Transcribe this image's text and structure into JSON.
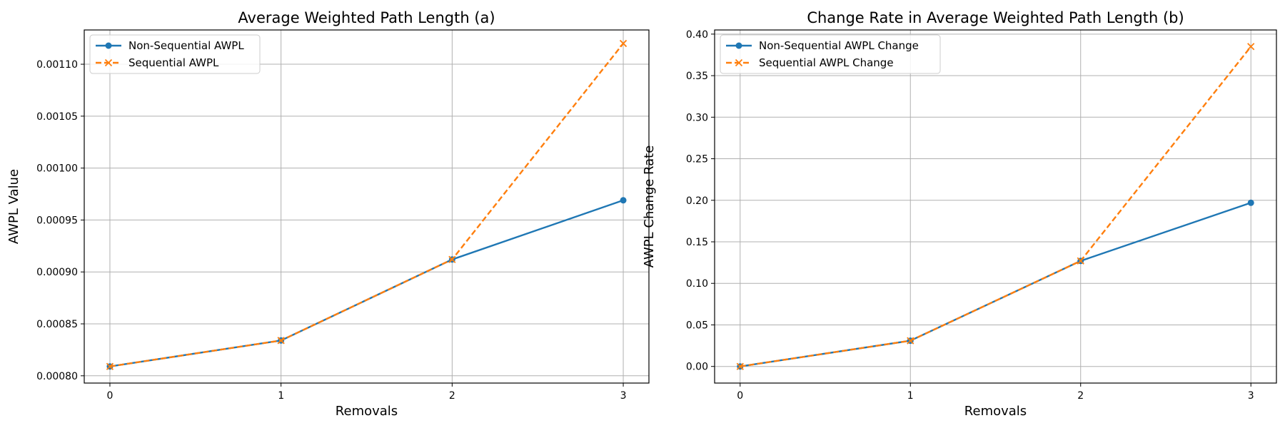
{
  "chart_data": [
    {
      "type": "line",
      "title": "Average Weighted Path Length (a)",
      "xlabel": "Removals",
      "ylabel": "AWPL Value",
      "x": [
        0,
        1,
        2,
        3
      ],
      "xticks": [
        "0",
        "1",
        "2",
        "3"
      ],
      "xlim": [
        -0.15,
        3.15
      ],
      "ylim": [
        0.000793,
        0.001133
      ],
      "yticks": [
        "0.00080",
        "0.00085",
        "0.00090",
        "0.00095",
        "0.00100",
        "0.00105",
        "0.00110"
      ],
      "grid": true,
      "legend": "upper-left",
      "series": [
        {
          "name": "Non-Sequential AWPL",
          "values": [
            0.000809,
            0.000834,
            0.000912,
            0.000969
          ],
          "color": "#1f77b4",
          "style": "solid",
          "marker": "circle"
        },
        {
          "name": "Sequential AWPL",
          "values": [
            0.000809,
            0.000834,
            0.000912,
            0.00112
          ],
          "color": "#ff7f0e",
          "style": "dashed",
          "marker": "x"
        }
      ]
    },
    {
      "type": "line",
      "title": "Change Rate in Average Weighted Path Length (b)",
      "xlabel": "Removals",
      "ylabel": "AWPL Change Rate",
      "x": [
        0,
        1,
        2,
        3
      ],
      "xticks": [
        "0",
        "1",
        "2",
        "3"
      ],
      "xlim": [
        -0.15,
        3.15
      ],
      "ylim": [
        -0.02,
        0.405
      ],
      "yticks": [
        "0.00",
        "0.05",
        "0.10",
        "0.15",
        "0.20",
        "0.25",
        "0.30",
        "0.35",
        "0.40"
      ],
      "grid": true,
      "legend": "upper-left",
      "series": [
        {
          "name": "Non-Sequential AWPL Change",
          "values": [
            0.0,
            0.031,
            0.127,
            0.197
          ],
          "color": "#1f77b4",
          "style": "solid",
          "marker": "circle"
        },
        {
          "name": "Sequential AWPL Change",
          "values": [
            0.0,
            0.031,
            0.127,
            0.385
          ],
          "color": "#ff7f0e",
          "style": "dashed",
          "marker": "x"
        }
      ]
    }
  ]
}
